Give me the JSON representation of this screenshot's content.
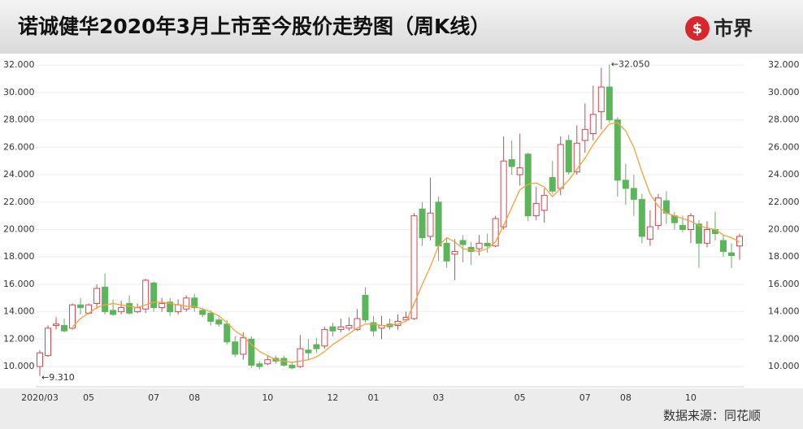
{
  "header": {
    "title": "诺诚健华2020年3月上市至今股价走势图（周K线）",
    "logo_text": "市界"
  },
  "footer": {
    "source": "数据来源：同花顺"
  },
  "chart_data": {
    "type": "candlestick",
    "categories": [
      "2020/03",
      null,
      null,
      null,
      null,
      null,
      "05",
      null,
      null,
      null,
      null,
      null,
      null,
      null,
      "07",
      null,
      null,
      null,
      null,
      "08",
      null,
      null,
      null,
      null,
      null,
      null,
      null,
      null,
      "10",
      null,
      null,
      null,
      null,
      null,
      null,
      null,
      "12",
      null,
      null,
      null,
      null,
      "01",
      null,
      null,
      null,
      null,
      null,
      null,
      null,
      "03",
      null,
      null,
      null,
      null,
      null,
      null,
      null,
      null,
      null,
      "05",
      null,
      null,
      null,
      null,
      null,
      null,
      null,
      "07",
      null,
      null,
      null,
      null,
      "08",
      null,
      null,
      null,
      null,
      null,
      null,
      null,
      "10",
      null,
      null,
      null,
      null,
      null,
      null
    ],
    "open": [
      10.0,
      10.8,
      13.0,
      13.0,
      12.8,
      14.5,
      13.9,
      14.6,
      15.8,
      14.1,
      14.0,
      14.6,
      14.0,
      14.2,
      16.1,
      14.3,
      14.7,
      14.0,
      14.2,
      15.0,
      14.1,
      13.9,
      13.4,
      13.1,
      11.8,
      10.9,
      12.0,
      10.2,
      10.2,
      10.6,
      10.6,
      10.1,
      10.0,
      11.2,
      11.6,
      11.5,
      12.9,
      12.7,
      12.8,
      12.7,
      15.2,
      13.2,
      12.8,
      13.1,
      13.0,
      13.4,
      13.5,
      21.5,
      19.5,
      22.0,
      19.0,
      18.2,
      19.2,
      18.7,
      18.6,
      19.0,
      18.8,
      20.2,
      25.1,
      24.0,
      25.5,
      21.0,
      21.4,
      23.8,
      23.0,
      26.5,
      24.2,
      26.5,
      27.0,
      28.6,
      30.4,
      28.0,
      23.6,
      23.0,
      22.2,
      19.3,
      20.3,
      22.1,
      21.0,
      20.3,
      20.0,
      20.4,
      19.0,
      20.0,
      19.2,
      18.3,
      18.8
    ],
    "high": [
      11.2,
      13.0,
      13.6,
      13.5,
      14.6,
      15.0,
      14.6,
      16.0,
      16.8,
      14.9,
      14.8,
      15.2,
      14.6,
      16.4,
      16.2,
      15.0,
      15.0,
      14.9,
      15.2,
      15.3,
      14.3,
      14.1,
      13.6,
      13.4,
      12.2,
      12.5,
      12.2,
      10.4,
      10.8,
      10.8,
      10.8,
      10.3,
      12.3,
      12.0,
      12.1,
      12.9,
      13.2,
      13.5,
      13.6,
      14.2,
      15.8,
      13.7,
      13.7,
      13.5,
      13.8,
      14.0,
      21.2,
      22.0,
      23.8,
      22.4,
      19.4,
      19.3,
      19.6,
      19.1,
      19.6,
      19.7,
      21.0,
      26.8,
      26.5,
      27.0,
      25.6,
      23.1,
      23.0,
      25.0,
      26.8,
      26.9,
      27.6,
      29.2,
      30.5,
      31.8,
      32.05,
      28.2,
      24.8,
      24.0,
      22.6,
      21.4,
      22.6,
      22.8,
      21.3,
      21.0,
      21.2,
      20.7,
      20.6,
      21.3,
      19.6,
      19.0,
      19.7
    ],
    "low": [
      9.31,
      10.7,
      12.7,
      12.5,
      12.7,
      13.8,
      13.8,
      14.2,
      13.8,
      13.7,
      13.8,
      13.8,
      13.9,
      13.9,
      14.0,
      14.0,
      13.7,
      13.8,
      14.0,
      14.0,
      13.6,
      13.0,
      12.9,
      11.6,
      10.7,
      10.5,
      9.9,
      9.8,
      10.1,
      10.2,
      10.0,
      9.8,
      9.9,
      10.5,
      11.0,
      11.3,
      12.2,
      12.5,
      12.6,
      12.6,
      13.2,
      12.2,
      12.0,
      12.7,
      12.7,
      13.3,
      13.4,
      18.8,
      19.2,
      17.7,
      17.2,
      16.3,
      17.6,
      17.4,
      18.1,
      18.3,
      18.7,
      20.0,
      24.0,
      23.2,
      20.6,
      20.7,
      20.5,
      22.6,
      22.5,
      24.0,
      24.0,
      25.6,
      26.5,
      27.3,
      27.8,
      22.4,
      21.8,
      21.0,
      19.0,
      18.8,
      20.0,
      20.4,
      20.0,
      19.8,
      19.0,
      17.2,
      18.7,
      19.2,
      18.0,
      17.2,
      17.8
    ],
    "close": [
      11.0,
      12.8,
      13.1,
      12.6,
      14.5,
      14.3,
      14.5,
      15.7,
      14.0,
      13.8,
      14.3,
      13.9,
      14.3,
      16.3,
      14.3,
      14.6,
      14.0,
      14.5,
      15.0,
      14.3,
      13.8,
      13.3,
      13.1,
      11.8,
      10.9,
      12.1,
      10.1,
      10.0,
      10.5,
      10.4,
      10.1,
      9.9,
      11.3,
      11.0,
      11.3,
      12.7,
      12.6,
      12.9,
      13.0,
      13.5,
      13.4,
      12.6,
      13.0,
      12.9,
      13.3,
      13.6,
      21.0,
      19.4,
      21.2,
      18.8,
      17.7,
      18.4,
      18.9,
      18.4,
      19.0,
      18.8,
      20.8,
      25.0,
      24.6,
      24.5,
      21.0,
      21.9,
      22.5,
      22.8,
      26.2,
      24.2,
      26.3,
      27.3,
      28.4,
      30.4,
      28.0,
      23.6,
      23.0,
      22.2,
      19.5,
      20.2,
      22.3,
      21.2,
      20.5,
      20.0,
      21.0,
      19.0,
      20.0,
      19.7,
      18.4,
      18.1,
      19.5
    ],
    "ma": [
      null,
      null,
      null,
      null,
      12.9,
      13.5,
      13.9,
      14.3,
      14.5,
      14.6,
      14.5,
      14.4,
      14.3,
      14.5,
      14.7,
      14.7,
      14.6,
      14.5,
      14.4,
      14.4,
      14.2,
      14.0,
      13.7,
      13.2,
      12.6,
      12.2,
      11.6,
      11.1,
      10.8,
      10.5,
      10.4,
      10.3,
      10.4,
      10.5,
      10.7,
      11.1,
      11.6,
      12.0,
      12.4,
      12.8,
      13.1,
      13.1,
      13.0,
      13.0,
      13.1,
      13.3,
      14.6,
      16.0,
      17.3,
      18.8,
      19.4,
      19.1,
      18.6,
      18.5,
      18.4,
      18.6,
      19.1,
      20.3,
      21.6,
      22.9,
      23.3,
      23.4,
      23.1,
      22.4,
      23.0,
      23.6,
      24.4,
      25.2,
      26.2,
      27.0,
      27.7,
      27.8,
      27.2,
      26.0,
      24.2,
      22.6,
      21.7,
      21.2,
      21.0,
      20.8,
      20.6,
      20.3,
      20.1,
      20.0,
      19.6,
      19.4,
      19.1
    ],
    "up_color": "#d9434e",
    "down_color": "#5db55b",
    "ma_color": "#f2a33a",
    "annotations": [
      "←32.050",
      "←9.310"
    ],
    "ylim": [
      9,
      32.6
    ],
    "yticks": [
      {
        "value": 10,
        "label": "10.000"
      },
      {
        "value": 12,
        "label": "12.000"
      },
      {
        "value": 14,
        "label": "14.000"
      },
      {
        "value": 16,
        "label": "16.000"
      },
      {
        "value": 18,
        "label": "18.000"
      },
      {
        "value": 20,
        "label": "20.000"
      },
      {
        "value": 22,
        "label": "22.000"
      },
      {
        "value": 24,
        "label": "24.000"
      },
      {
        "value": 26,
        "label": "26.000"
      },
      {
        "value": 28,
        "label": "28.000"
      },
      {
        "value": 30,
        "label": "30.000"
      },
      {
        "value": 32,
        "label": "32.000"
      }
    ],
    "grid": true
  }
}
